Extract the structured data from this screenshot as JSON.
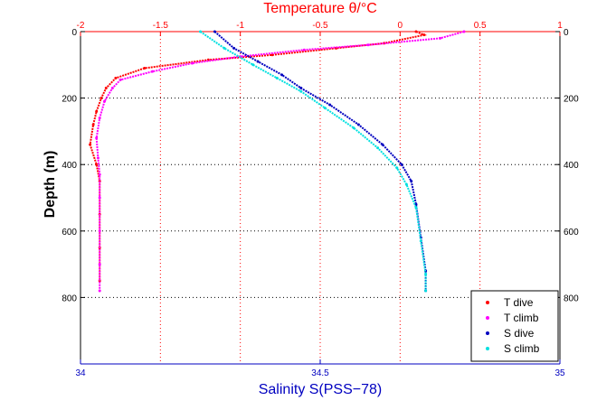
{
  "chart_data": {
    "type": "scatter",
    "title": "Temperature θ/°C",
    "xlabel": "Salinity S(PSS−78)",
    "ylabel": "Depth (m)",
    "x_top": {
      "label": "Temperature θ/°C",
      "range": [
        -2,
        1
      ],
      "ticks": [
        -2,
        -1.5,
        -1,
        -0.5,
        0,
        0.5,
        1
      ],
      "tick_labels": [
        "-2",
        "-1.5",
        "-1",
        "-0.5",
        "0",
        "0.5",
        "1"
      ],
      "color": "#ff0000"
    },
    "x_bottom": {
      "label": "Salinity S(PSS−78)",
      "range": [
        34,
        35
      ],
      "ticks": [
        34,
        34.5,
        35
      ],
      "tick_labels": [
        "34",
        "34.5",
        "35"
      ],
      "color": "#0000c0"
    },
    "y": {
      "label": "Depth (m)",
      "range": [
        0,
        1000
      ],
      "reversed": true,
      "ticks": [
        0,
        200,
        400,
        600,
        800
      ],
      "tick_labels": [
        "0",
        "200",
        "400",
        "600",
        "800"
      ]
    },
    "grid": true,
    "legend_position": "bottom-right",
    "series": [
      {
        "name": "T dive",
        "axis": "top",
        "color": "#ff0000",
        "x": [
          0.1,
          0.15,
          -0.1,
          -0.4,
          -0.8,
          -1.2,
          -1.6,
          -1.78,
          -1.84,
          -1.87,
          -1.9,
          -1.92,
          -1.94,
          -1.9,
          -1.88,
          -1.88,
          -1.88,
          -1.88
        ],
        "y": [
          0,
          10,
          35,
          50,
          70,
          85,
          110,
          140,
          170,
          200,
          240,
          280,
          340,
          400,
          450,
          550,
          650,
          750
        ]
      },
      {
        "name": "T climb",
        "axis": "top",
        "color": "#ff00ff",
        "x": [
          0.4,
          0.25,
          -0.2,
          -0.6,
          -1.0,
          -1.3,
          -1.55,
          -1.75,
          -1.8,
          -1.85,
          -1.88,
          -1.9,
          -1.89,
          -1.88,
          -1.88,
          -1.88,
          -1.88,
          -1.88
        ],
        "y": [
          0,
          20,
          40,
          55,
          75,
          95,
          120,
          145,
          170,
          210,
          260,
          320,
          380,
          430,
          500,
          600,
          700,
          780
        ]
      },
      {
        "name": "S dive",
        "axis": "bottom",
        "color": "#0000c0",
        "x": [
          34.28,
          34.32,
          34.37,
          34.42,
          34.46,
          34.52,
          34.58,
          34.63,
          34.67,
          34.69,
          34.7,
          34.71,
          34.72,
          34.72
        ],
        "y": [
          0,
          50,
          90,
          130,
          170,
          220,
          280,
          340,
          400,
          450,
          520,
          620,
          720,
          780
        ]
      },
      {
        "name": "S climb",
        "axis": "bottom",
        "color": "#00e0e0",
        "x": [
          34.25,
          34.3,
          34.36,
          34.41,
          34.46,
          34.51,
          34.57,
          34.62,
          34.66,
          34.68,
          34.7,
          34.71,
          34.72,
          34.72
        ],
        "y": [
          0,
          50,
          100,
          140,
          180,
          230,
          290,
          350,
          410,
          460,
          530,
          630,
          730,
          780
        ]
      }
    ]
  }
}
